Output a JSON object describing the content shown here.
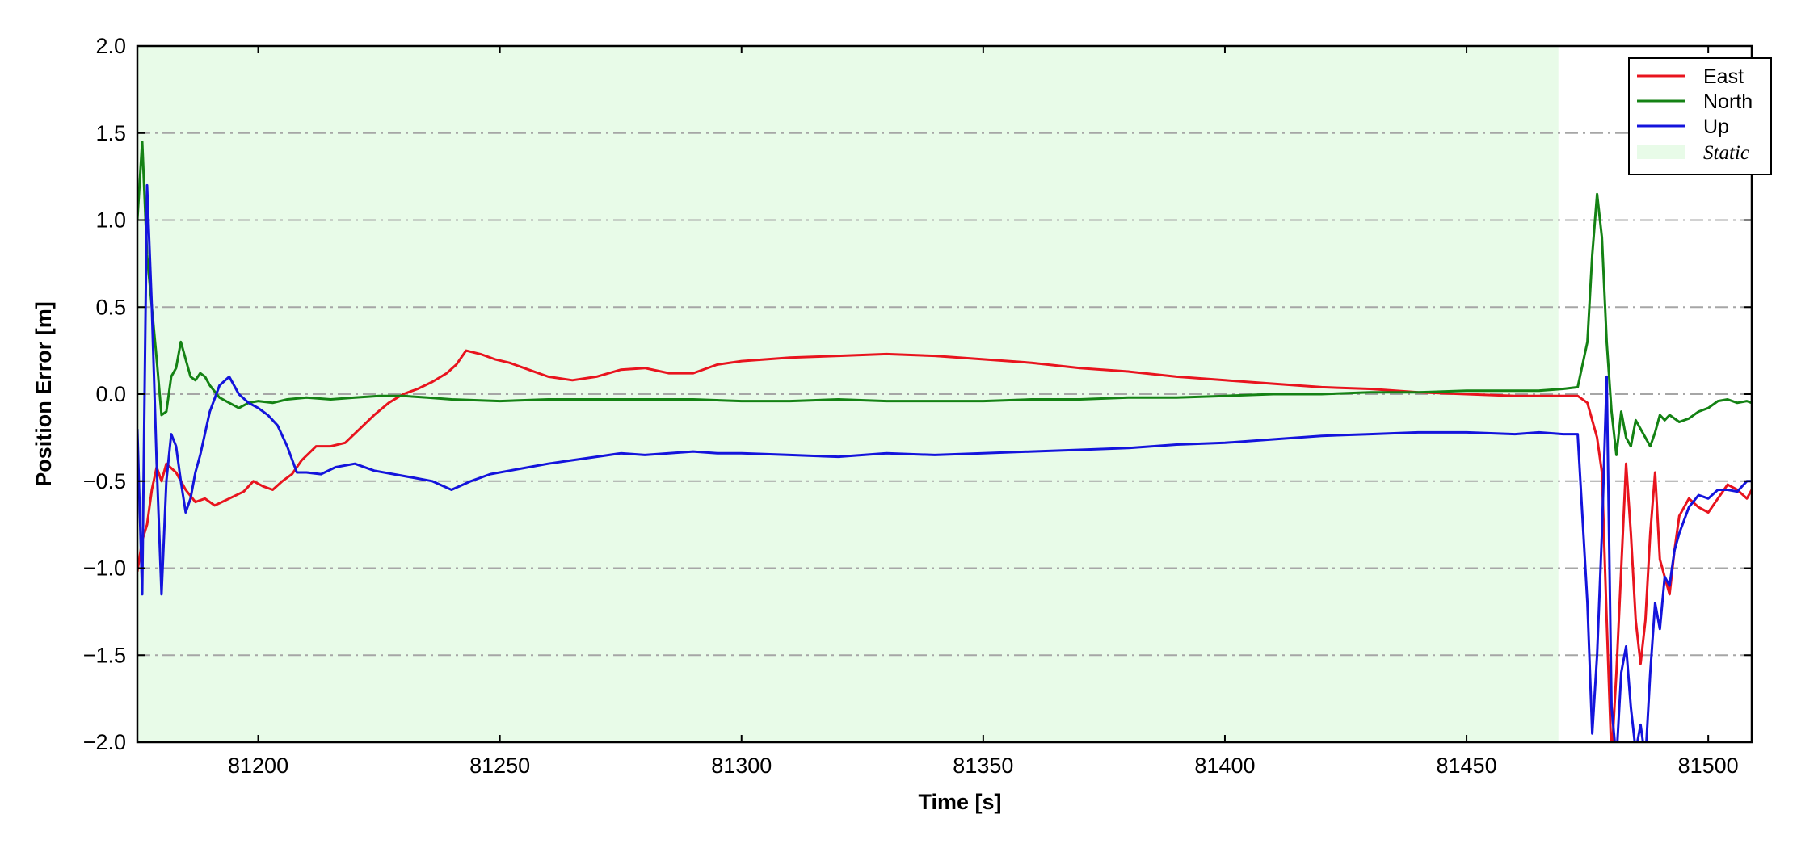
{
  "chart_data": {
    "type": "line",
    "title": "",
    "xlabel": "Time [s]",
    "ylabel": "Position Error [m]",
    "xlim": [
      81175,
      81509
    ],
    "ylim": [
      -2.0,
      2.0
    ],
    "x_ticks": [
      81200,
      81250,
      81300,
      81350,
      81400,
      81450,
      81500
    ],
    "y_ticks": [
      -2.0,
      -1.5,
      -1.0,
      -0.5,
      0.0,
      0.5,
      1.0,
      1.5,
      2.0
    ],
    "y_tick_labels": [
      "−2.0",
      "−1.5",
      "−1.0",
      "−0.5",
      "0.0",
      "0.5",
      "1.0",
      "1.5",
      "2.0"
    ],
    "grid": "horizontal dash-dot",
    "legend_position": "top-right",
    "static_region": {
      "label": "Static",
      "x_start": 81175,
      "x_end": 81469,
      "color": "#e8fbe8"
    },
    "series": [
      {
        "name": "East",
        "color": "#e8141e",
        "x": [
          81175,
          81176,
          81177,
          81178,
          81179,
          81180,
          81181,
          81183,
          81185,
          81187,
          81189,
          81191,
          81194,
          81197,
          81199,
          81201,
          81203,
          81205,
          81207,
          81209,
          81212,
          81215,
          81218,
          81221,
          81224,
          81227,
          81230,
          81233,
          81236,
          81239,
          81241,
          81243,
          81246,
          81249,
          81252,
          81256,
          81260,
          81265,
          81270,
          81275,
          81280,
          81285,
          81290,
          81295,
          81300,
          81310,
          81320,
          81330,
          81340,
          81350,
          81360,
          81370,
          81380,
          81390,
          81400,
          81410,
          81420,
          81430,
          81440,
          81450,
          81460,
          81465,
          81470,
          81473,
          81475,
          81477,
          81478,
          81479,
          81480,
          81481,
          81482,
          81483,
          81484,
          81485,
          81486,
          81487,
          81488,
          81489,
          81490,
          81491,
          81492,
          81493,
          81494,
          81496,
          81498,
          81500,
          81502,
          81504,
          81506,
          81508,
          81509
        ],
        "y": [
          -1.02,
          -0.84,
          -0.75,
          -0.55,
          -0.42,
          -0.5,
          -0.4,
          -0.45,
          -0.55,
          -0.62,
          -0.6,
          -0.64,
          -0.6,
          -0.56,
          -0.5,
          -0.53,
          -0.55,
          -0.5,
          -0.46,
          -0.38,
          -0.3,
          -0.3,
          -0.28,
          -0.2,
          -0.12,
          -0.05,
          0.0,
          0.03,
          0.07,
          0.12,
          0.17,
          0.25,
          0.23,
          0.2,
          0.18,
          0.14,
          0.1,
          0.08,
          0.1,
          0.14,
          0.15,
          0.12,
          0.12,
          0.17,
          0.19,
          0.21,
          0.22,
          0.23,
          0.22,
          0.2,
          0.18,
          0.15,
          0.13,
          0.1,
          0.08,
          0.06,
          0.04,
          0.03,
          0.01,
          0.0,
          -0.01,
          -0.01,
          -0.01,
          -0.01,
          -0.05,
          -0.25,
          -0.45,
          -1.3,
          -2.1,
          -1.6,
          -1.0,
          -0.4,
          -0.8,
          -1.3,
          -1.55,
          -1.3,
          -0.8,
          -0.45,
          -0.95,
          -1.05,
          -1.15,
          -0.9,
          -0.7,
          -0.6,
          -0.65,
          -0.68,
          -0.6,
          -0.52,
          -0.55,
          -0.6,
          -0.55
        ]
      },
      {
        "name": "North",
        "color": "#148214",
        "x": [
          81175,
          81176,
          81177,
          81178,
          81179,
          81180,
          81181,
          81182,
          81183,
          81184,
          81185,
          81186,
          81187,
          81188,
          81189,
          81190,
          81192,
          81194,
          81196,
          81198,
          81200,
          81203,
          81206,
          81210,
          81215,
          81220,
          81225,
          81230,
          81235,
          81240,
          81250,
          81260,
          81270,
          81280,
          81290,
          81300,
          81310,
          81320,
          81330,
          81340,
          81350,
          81360,
          81370,
          81380,
          81390,
          81400,
          81410,
          81420,
          81430,
          81440,
          81450,
          81460,
          81465,
          81470,
          81473,
          81475,
          81476,
          81477,
          81478,
          81479,
          81480,
          81481,
          81482,
          81483,
          81484,
          81485,
          81486,
          81487,
          81488,
          81489,
          81490,
          81491,
          81492,
          81494,
          81496,
          81498,
          81500,
          81502,
          81504,
          81506,
          81508,
          81509
        ],
        "y": [
          1.0,
          1.45,
          0.8,
          0.5,
          0.2,
          -0.12,
          -0.1,
          0.1,
          0.15,
          0.3,
          0.2,
          0.1,
          0.08,
          0.12,
          0.1,
          0.05,
          -0.02,
          -0.05,
          -0.08,
          -0.05,
          -0.04,
          -0.05,
          -0.03,
          -0.02,
          -0.03,
          -0.02,
          -0.01,
          -0.01,
          -0.02,
          -0.03,
          -0.04,
          -0.03,
          -0.03,
          -0.03,
          -0.03,
          -0.04,
          -0.04,
          -0.03,
          -0.04,
          -0.04,
          -0.04,
          -0.03,
          -0.03,
          -0.02,
          -0.02,
          -0.01,
          0.0,
          0.0,
          0.01,
          0.01,
          0.02,
          0.02,
          0.02,
          0.03,
          0.04,
          0.3,
          0.8,
          1.15,
          0.9,
          0.3,
          -0.1,
          -0.35,
          -0.1,
          -0.25,
          -0.3,
          -0.15,
          -0.2,
          -0.25,
          -0.3,
          -0.22,
          -0.12,
          -0.15,
          -0.12,
          -0.16,
          -0.14,
          -0.1,
          -0.08,
          -0.04,
          -0.03,
          -0.05,
          -0.04,
          -0.05
        ]
      },
      {
        "name": "Up",
        "color": "#1414dc",
        "x": [
          81175,
          81176,
          81177,
          81178,
          81179,
          81180,
          81181,
          81182,
          81183,
          81184,
          81185,
          81186,
          81187,
          81188,
          81190,
          81192,
          81194,
          81196,
          81198,
          81200,
          81202,
          81204,
          81206,
          81208,
          81210,
          81213,
          81216,
          81220,
          81224,
          81228,
          81232,
          81236,
          81240,
          81244,
          81248,
          81252,
          81256,
          81260,
          81265,
          81270,
          81275,
          81280,
          81285,
          81290,
          81295,
          81300,
          81310,
          81320,
          81330,
          81340,
          81350,
          81360,
          81370,
          81380,
          81390,
          81400,
          81410,
          81420,
          81430,
          81440,
          81450,
          81460,
          81465,
          81470,
          81473,
          81475,
          81476,
          81477,
          81478,
          81479,
          81480,
          81481,
          81482,
          81483,
          81484,
          81485,
          81486,
          81487,
          81488,
          81489,
          81490,
          81491,
          81492,
          81493,
          81494,
          81496,
          81498,
          81500,
          81502,
          81504,
          81506,
          81508,
          81509
        ],
        "y": [
          -0.2,
          -1.15,
          1.2,
          0.5,
          -0.4,
          -1.15,
          -0.5,
          -0.23,
          -0.3,
          -0.5,
          -0.68,
          -0.6,
          -0.45,
          -0.35,
          -0.1,
          0.05,
          0.1,
          0.0,
          -0.05,
          -0.08,
          -0.12,
          -0.18,
          -0.3,
          -0.45,
          -0.45,
          -0.46,
          -0.42,
          -0.4,
          -0.44,
          -0.46,
          -0.48,
          -0.5,
          -0.55,
          -0.5,
          -0.46,
          -0.44,
          -0.42,
          -0.4,
          -0.38,
          -0.36,
          -0.34,
          -0.35,
          -0.34,
          -0.33,
          -0.34,
          -0.34,
          -0.35,
          -0.36,
          -0.34,
          -0.35,
          -0.34,
          -0.33,
          -0.32,
          -0.31,
          -0.29,
          -0.28,
          -0.26,
          -0.24,
          -0.23,
          -0.22,
          -0.22,
          -0.23,
          -0.22,
          -0.23,
          -0.23,
          -1.2,
          -1.95,
          -1.5,
          -0.8,
          0.1,
          -1.8,
          -2.1,
          -1.6,
          -1.45,
          -1.8,
          -2.05,
          -1.9,
          -2.1,
          -1.6,
          -1.2,
          -1.35,
          -1.05,
          -1.1,
          -0.9,
          -0.8,
          -0.65,
          -0.58,
          -0.6,
          -0.55,
          -0.55,
          -0.56,
          -0.5,
          -0.5
        ]
      }
    ]
  }
}
